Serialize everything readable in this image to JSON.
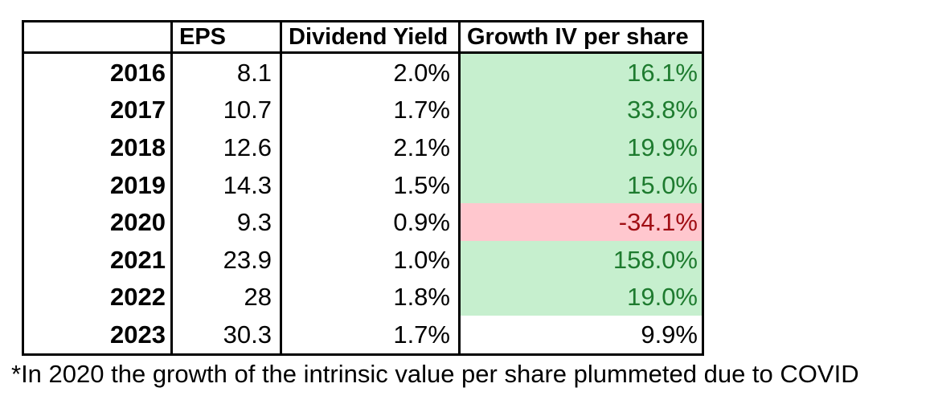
{
  "table": {
    "headers": [
      "",
      "EPS",
      "Dividend Yield",
      "Growth IV per share"
    ],
    "rows": [
      {
        "year": "2016",
        "eps": "8.1",
        "dividend_yield": "2.0%",
        "growth_iv": "16.1%",
        "growth_style": "good"
      },
      {
        "year": "2017",
        "eps": "10.7",
        "dividend_yield": "1.7%",
        "growth_iv": "33.8%",
        "growth_style": "good"
      },
      {
        "year": "2018",
        "eps": "12.6",
        "dividend_yield": "2.1%",
        "growth_iv": "19.9%",
        "growth_style": "good"
      },
      {
        "year": "2019",
        "eps": "14.3",
        "dividend_yield": "1.5%",
        "growth_iv": "15.0%",
        "growth_style": "good"
      },
      {
        "year": "2020",
        "eps": "9.3",
        "dividend_yield": "0.9%",
        "growth_iv": "-34.1%",
        "growth_style": "bad"
      },
      {
        "year": "2021",
        "eps": "23.9",
        "dividend_yield": "1.0%",
        "growth_iv": "158.0%",
        "growth_style": "good"
      },
      {
        "year": "2022",
        "eps": "28",
        "dividend_yield": "1.8%",
        "growth_iv": "19.0%",
        "growth_style": "good"
      },
      {
        "year": "2023",
        "eps": "30.3",
        "dividend_yield": "1.7%",
        "growth_iv": "9.9%",
        "growth_style": "none"
      }
    ]
  },
  "footnote": "*In 2020 the growth of the intrinsic value per share plummeted due to COVID",
  "colors": {
    "good_bg": "#C6EFCE",
    "good_text": "#1E7B2F",
    "bad_bg": "#FFC7CE",
    "bad_text": "#A00E14",
    "border": "#000000",
    "text": "#000000"
  },
  "chart_data": {
    "type": "table",
    "title": "",
    "categories": [
      "2016",
      "2017",
      "2018",
      "2019",
      "2020",
      "2021",
      "2022",
      "2023"
    ],
    "series": [
      {
        "name": "EPS",
        "values": [
          8.1,
          10.7,
          12.6,
          14.3,
          9.3,
          23.9,
          28,
          30.3
        ]
      },
      {
        "name": "Dividend Yield",
        "values": [
          2.0,
          1.7,
          2.1,
          1.5,
          0.9,
          1.0,
          1.8,
          1.7
        ],
        "unit": "%"
      },
      {
        "name": "Growth IV per share",
        "values": [
          16.1,
          33.8,
          19.9,
          15.0,
          -34.1,
          158.0,
          19.0,
          9.9
        ],
        "unit": "%"
      }
    ],
    "annotations": [
      "*In 2020 the growth of the intrinsic value per share plummeted due to COVID"
    ],
    "highlights": {
      "positive_growth_fill": "#C6EFCE",
      "negative_growth_fill": "#FFC7CE",
      "negative_year": "2020",
      "unhighlighted_year": "2023"
    }
  }
}
